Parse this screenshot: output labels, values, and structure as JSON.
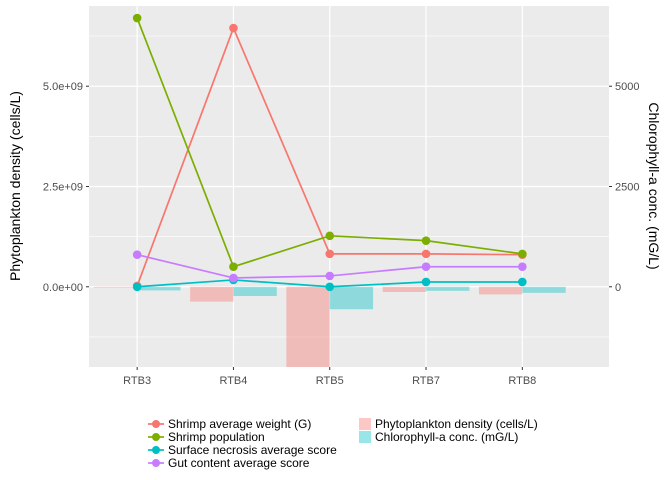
{
  "chart_data": {
    "type": "line",
    "categories": [
      "RTB3",
      "RTB4",
      "RTB5",
      "RTB7",
      "RTB8"
    ],
    "ylabel": "Phytoplankton density (cells/L)",
    "y2label": "Chlorophyll-a conc.  (mG/L)",
    "ylim": [
      -2000000000.0,
      7000000000.0
    ],
    "y_ticks": [
      {
        "value": 0,
        "label": "0.0e+00"
      },
      {
        "value": 2500000000.0,
        "label": "2.5e+09"
      },
      {
        "value": 5000000000.0,
        "label": "5.0e+09"
      }
    ],
    "y2_ticks": [
      {
        "value": 0,
        "label": "0"
      },
      {
        "value": 2500,
        "label": "2500"
      },
      {
        "value": 5000,
        "label": "5000"
      }
    ],
    "grid": true,
    "legend_position": "bottom",
    "bar_series": [
      {
        "name": "Phytoplankton density (cells/L)",
        "color": "#F8766D",
        "values": [
          -20000000.0,
          -370000000.0,
          -2000000000.0,
          -130000000.0,
          -190000000.0
        ]
      },
      {
        "name": "Chlorophyll-a conc. (mG/L)",
        "color": "#00BFC4",
        "values": [
          -90000000.0,
          -230000000.0,
          -560000000.0,
          -100000000.0,
          -150000000.0
        ]
      }
    ],
    "line_series": [
      {
        "name": "Shrimp average weight (G)",
        "color": "#F8766D",
        "values": [
          20000000.0,
          6450000000.0,
          820000000.0,
          820000000.0,
          800000000.0
        ]
      },
      {
        "name": "Shrimp population",
        "color": "#7CAE00",
        "values": [
          6700000000.0,
          500000000.0,
          1270000000.0,
          1150000000.0,
          820000000.0
        ]
      },
      {
        "name": "Surface necrosis average score",
        "color": "#00BFC4",
        "values": [
          0.0,
          170000000.0,
          0.0,
          120000000.0,
          120000000.0
        ]
      },
      {
        "name": "Gut content average score",
        "color": "#C77CFF",
        "values": [
          800000000.0,
          220000000.0,
          270000000.0,
          500000000.0,
          500000000.0
        ]
      }
    ]
  }
}
